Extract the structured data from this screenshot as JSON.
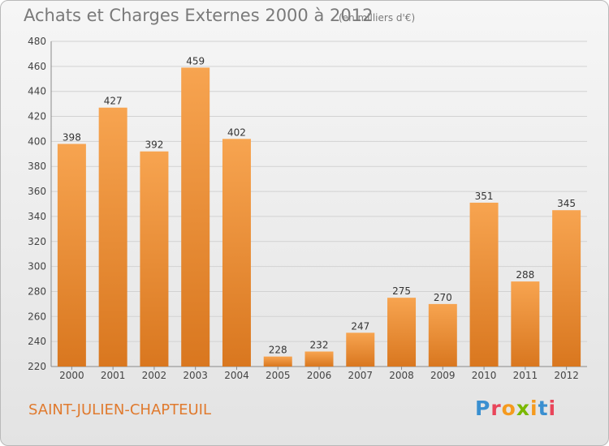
{
  "header": {
    "title": "Achats et Charges Externes 2000 à 2012",
    "subtitle": "(en milliers d'€)"
  },
  "footer": {
    "commune": "SAINT-JULIEN-CHAPTEUIL",
    "logo_text": "Proxiti"
  },
  "colors": {
    "bar_top": "#f7a450",
    "bar_bottom": "#d9771f",
    "title": "#7a7a7a",
    "commune": "#e07a2e",
    "logo_letters": [
      "#3a8fd0",
      "#e9455a",
      "#f59a1e",
      "#7ab800",
      "#f59a1e",
      "#3a8fd0",
      "#e9455a"
    ]
  },
  "chart_data": {
    "type": "bar",
    "categories": [
      "2000",
      "2001",
      "2002",
      "2003",
      "2004",
      "2005",
      "2006",
      "2007",
      "2008",
      "2009",
      "2010",
      "2011",
      "2012"
    ],
    "values": [
      398,
      427,
      392,
      459,
      402,
      228,
      232,
      247,
      275,
      270,
      351,
      288,
      345
    ],
    "ylim": [
      220,
      480
    ],
    "yticks": [
      220,
      240,
      260,
      280,
      300,
      320,
      340,
      360,
      380,
      400,
      420,
      440,
      460,
      480
    ],
    "grid": true,
    "data_labels": true
  }
}
